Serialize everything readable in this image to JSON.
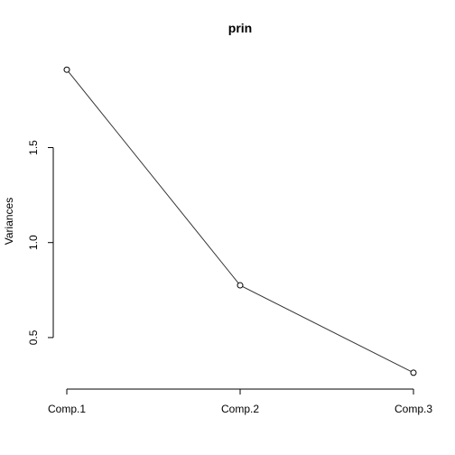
{
  "chart_data": {
    "type": "line",
    "title": "prin",
    "xlabel": "",
    "ylabel": "Variances",
    "categories": [
      "Comp.1",
      "Comp.2",
      "Comp.3"
    ],
    "values": [
      1.91,
      0.775,
      0.315
    ],
    "ylim": [
      0.3,
      1.93
    ],
    "yticks": [
      0.5,
      1.0,
      1.5
    ],
    "ytick_labels": [
      "0.5",
      "1.0",
      "1.5"
    ],
    "markers": "open-circle",
    "grid": false
  }
}
